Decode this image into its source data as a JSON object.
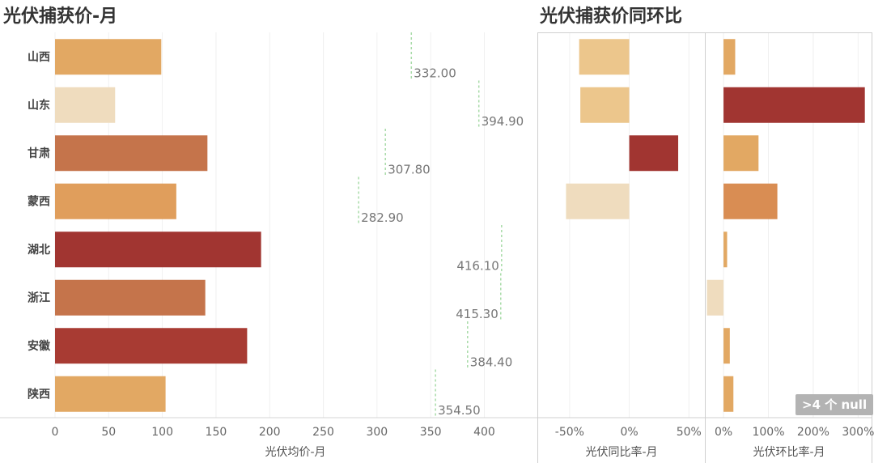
{
  "titles": {
    "left": "光伏捕获价-月",
    "right": "光伏捕获价同环比"
  },
  "null_badge": ">4 个 null",
  "chart_data": [
    {
      "type": "bar",
      "orientation": "horizontal",
      "categories": [
        "山西",
        "山东",
        "甘肃",
        "蒙西",
        "湖北",
        "浙江",
        "安徽",
        "陕西"
      ],
      "values": [
        99,
        56,
        142,
        113,
        192,
        140,
        179,
        103
      ],
      "reference_values": [
        332.0,
        394.9,
        307.8,
        282.9,
        416.1,
        415.3,
        384.4,
        354.5
      ],
      "reference_labels": [
        "332.00",
        "394.90",
        "307.80",
        "282.90",
        "416.10",
        "415.30",
        "384.40",
        "354.50"
      ],
      "title": "光伏捕获价-月",
      "xlabel": "光伏均价-月",
      "xlim": [
        0,
        420
      ],
      "ticks": [
        0,
        50,
        100,
        150,
        200,
        250,
        300,
        350,
        400
      ],
      "tick_labels": [
        "0",
        "50",
        "100",
        "150",
        "200",
        "250",
        "300",
        "350",
        "400"
      ],
      "colors": [
        "#e2a863",
        "#efdcbe",
        "#c5744b",
        "#e09e5c",
        "#a13531",
        "#c5744b",
        "#a83b33",
        "#e2a863"
      ]
    },
    {
      "type": "bar",
      "orientation": "horizontal",
      "categories": [
        "山西",
        "山东",
        "甘肃",
        "蒙西",
        "湖北",
        "浙江",
        "安徽",
        "陕西"
      ],
      "values": [
        -0.42,
        -0.41,
        0.41,
        -0.53,
        null,
        null,
        null,
        null
      ],
      "title": "光伏捕获价同环比",
      "xlabel": "光伏同比率-月",
      "xlim": [
        -0.75,
        0.62
      ],
      "ticks": [
        -0.5,
        0,
        0.5
      ],
      "tick_labels": [
        "-50%",
        "0%",
        "50%"
      ],
      "colors": [
        "#ecc68c",
        "#ecc68c",
        "#a13531",
        "#efdcbe",
        null,
        null,
        null,
        null
      ]
    },
    {
      "type": "bar",
      "orientation": "horizontal",
      "categories": [
        "山西",
        "山东",
        "甘肃",
        "蒙西",
        "湖北",
        "浙江",
        "安徽",
        "陕西"
      ],
      "values": [
        0.26,
        3.15,
        0.78,
        1.2,
        0.08,
        -0.37,
        0.14,
        0.22
      ],
      "xlabel": "光伏环比率-月",
      "xlim": [
        -0.38,
        3.3
      ],
      "ticks": [
        0,
        1,
        2,
        3
      ],
      "tick_labels": [
        "0%",
        "100%",
        "200%",
        "300%"
      ],
      "colors": [
        "#e2a863",
        "#a13531",
        "#e2a863",
        "#d98d53",
        "#e2a863",
        "#efdcbe",
        "#e2a863",
        "#e2a863"
      ]
    }
  ]
}
